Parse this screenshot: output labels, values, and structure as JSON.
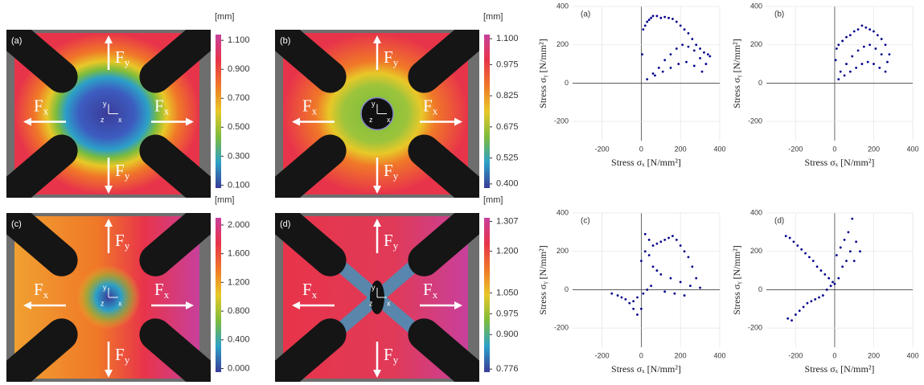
{
  "figure_panels": [
    {
      "label": "(a)",
      "unit": "[mm]",
      "colorbar_lim": [
        0.08,
        1.14
      ],
      "colorbar_ticks": [
        {
          "value": 1.1,
          "label": "1.100"
        },
        {
          "value": 0.9,
          "label": "0.900"
        },
        {
          "value": 0.7,
          "label": "0.700"
        },
        {
          "value": 0.5,
          "label": "0.500"
        },
        {
          "value": 0.3,
          "label": "0.300"
        },
        {
          "value": 0.1,
          "label": "0.100"
        }
      ]
    },
    {
      "label": "(b)",
      "unit": "[mm]",
      "colorbar_lim": [
        0.38,
        1.12
      ],
      "colorbar_ticks": [
        {
          "value": 1.1,
          "label": "1.100"
        },
        {
          "value": 0.975,
          "label": "0.975"
        },
        {
          "value": 0.825,
          "label": "0.825"
        },
        {
          "value": 0.675,
          "label": "0.675"
        },
        {
          "value": 0.525,
          "label": "0.525"
        },
        {
          "value": 0.4,
          "label": "0.400"
        }
      ]
    },
    {
      "label": "(c)",
      "unit": "[mm]",
      "colorbar_lim": [
        -0.05,
        2.1
      ],
      "colorbar_ticks": [
        {
          "value": 2,
          "label": "2.000"
        },
        {
          "value": 1.6,
          "label": "1.600"
        },
        {
          "value": 1.2,
          "label": "1.200"
        },
        {
          "value": 0.8,
          "label": "0.800"
        },
        {
          "value": 0.4,
          "label": "0.400"
        },
        {
          "value": 0,
          "label": "0.000"
        }
      ]
    },
    {
      "label": "(d)",
      "unit": "[mm]",
      "colorbar_lim": [
        0.765,
        1.32
      ],
      "colorbar_ticks": [
        1.307,
        {
          "value": 1.2,
          "label": "1.200"
        },
        {
          "value": 1.05,
          "label": "1.050"
        },
        0.975,
        {
          "value": 0.9,
          "label": "0.900"
        },
        0.776
      ]
    }
  ],
  "colormap": [
    "#c8409c",
    "#e8344a",
    "#f07828",
    "#e8c828",
    "#7cbc3c",
    "#2ca0c8",
    "#3a3c98"
  ],
  "force_labels": {
    "main": "F",
    "x": "x",
    "y": "y"
  },
  "axis_icon_labels": {
    "x": "x",
    "y": "y",
    "z": "z"
  },
  "chart_data": [
    {
      "type": "scatter",
      "label": "(a)",
      "color": "#00008b",
      "grid": true,
      "xlabel": "Stress σₓ [N/mm²]",
      "ylabel": "Stress σᵧ [N/mm²]",
      "xlim": [
        -350,
        400
      ],
      "ylim": [
        -300,
        400
      ],
      "xticks": [
        -200,
        0,
        200,
        400
      ],
      "yticks": [
        -200,
        0,
        200,
        400
      ],
      "x": [
        5,
        10,
        20,
        30,
        40,
        50,
        60,
        80,
        100,
        120,
        140,
        160,
        180,
        200,
        220,
        240,
        260,
        280,
        300,
        320,
        340,
        350,
        60,
        90,
        120,
        150,
        180,
        210,
        240,
        270,
        300,
        330,
        30,
        70,
        110,
        150,
        190,
        230,
        270,
        310
      ],
      "values": [
        150,
        280,
        300,
        320,
        330,
        340,
        350,
        350,
        340,
        345,
        340,
        335,
        320,
        300,
        280,
        260,
        230,
        200,
        180,
        160,
        150,
        140,
        50,
        80,
        120,
        150,
        180,
        200,
        190,
        170,
        130,
        100,
        20,
        40,
        60,
        80,
        100,
        110,
        90,
        60
      ]
    },
    {
      "type": "scatter",
      "label": "(b)",
      "color": "#00008b",
      "grid": true,
      "xlabel": "Stress σₓ [N/mm²]",
      "ylabel": "Stress σᵧ [N/mm²]",
      "xlim": [
        -350,
        400
      ],
      "ylim": [
        -300,
        400
      ],
      "xticks": [
        -200,
        0,
        200,
        400
      ],
      "yticks": [
        -200,
        0,
        200,
        400
      ],
      "x": [
        5,
        10,
        20,
        40,
        60,
        80,
        100,
        120,
        140,
        160,
        180,
        200,
        220,
        240,
        260,
        280,
        30,
        60,
        90,
        120,
        150,
        180,
        210,
        240,
        270,
        20,
        50,
        80,
        110,
        140,
        170,
        200,
        230,
        260
      ],
      "values": [
        120,
        180,
        200,
        220,
        240,
        250,
        270,
        280,
        300,
        290,
        280,
        270,
        250,
        230,
        200,
        150,
        60,
        100,
        140,
        170,
        190,
        200,
        180,
        150,
        110,
        20,
        40,
        60,
        80,
        100,
        110,
        100,
        80,
        60
      ]
    },
    {
      "type": "scatter",
      "label": "(c)",
      "color": "#00008b",
      "grid": true,
      "xlabel": "Stress σₓ [N/mm²]",
      "ylabel": "Stress σᵧ [N/mm²]",
      "xlim": [
        -350,
        400
      ],
      "ylim": [
        -300,
        400
      ],
      "xticks": [
        -200,
        0,
        200,
        400
      ],
      "yticks": [
        -200,
        0,
        200,
        400
      ],
      "x": [
        -150,
        -120,
        -100,
        -80,
        -60,
        -40,
        -20,
        0,
        20,
        40,
        60,
        80,
        100,
        120,
        140,
        160,
        180,
        200,
        220,
        240,
        260,
        280,
        300,
        0,
        20,
        40,
        60,
        80,
        100,
        150,
        200,
        250,
        -40,
        -20,
        10,
        30,
        50,
        120,
        170,
        220
      ],
      "values": [
        -20,
        -30,
        -40,
        -50,
        -70,
        -100,
        -130,
        -100,
        290,
        260,
        230,
        240,
        250,
        260,
        270,
        280,
        260,
        230,
        200,
        170,
        120,
        60,
        10,
        150,
        200,
        180,
        120,
        100,
        80,
        60,
        40,
        20,
        -60,
        -40,
        -20,
        0,
        20,
        -10,
        -20,
        -30
      ]
    },
    {
      "type": "scatter",
      "label": "(d)",
      "color": "#00008b",
      "grid": true,
      "xlabel": "Stress σₓ [N/mm²]",
      "ylabel": "Stress σᵧ [N/mm²]",
      "xlim": [
        -350,
        400
      ],
      "ylim": [
        -300,
        400
      ],
      "xticks": [
        -200,
        0,
        200,
        400
      ],
      "yticks": [
        -200,
        0,
        200,
        400
      ],
      "x": [
        -250,
        -230,
        -210,
        -190,
        -170,
        -150,
        -130,
        -110,
        -90,
        -70,
        -50,
        -30,
        -10,
        10,
        30,
        50,
        70,
        90,
        110,
        130,
        -240,
        -220,
        -200,
        -180,
        -160,
        -140,
        -120,
        -100,
        -80,
        -60,
        -40,
        -20,
        0,
        20,
        40,
        60,
        80,
        100
      ],
      "values": [
        280,
        270,
        250,
        230,
        210,
        190,
        170,
        150,
        120,
        100,
        80,
        60,
        40,
        180,
        220,
        260,
        300,
        370,
        250,
        200,
        -150,
        -160,
        -130,
        -110,
        -90,
        -70,
        -60,
        -50,
        -40,
        -30,
        0,
        20,
        30,
        60,
        120,
        150,
        200,
        150
      ]
    }
  ]
}
